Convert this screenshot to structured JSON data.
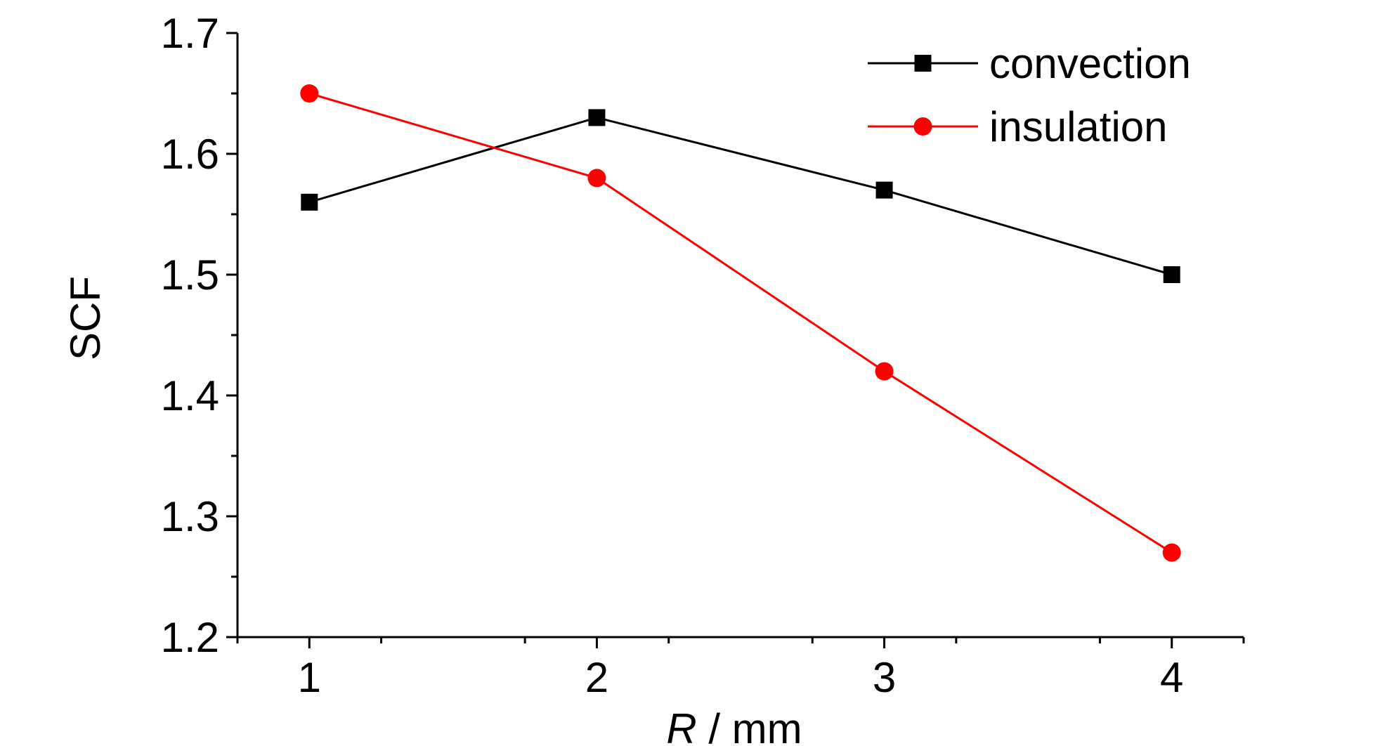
{
  "chart_data": {
    "type": "line",
    "xlabel": {
      "variable": "R",
      "unit": " / mm"
    },
    "ylabel": "SCF",
    "x": [
      1,
      2,
      3,
      4
    ],
    "x_ticks": [
      "1",
      "2",
      "3",
      "4"
    ],
    "y_ticks": [
      "1.2",
      "1.3",
      "1.4",
      "1.5",
      "1.6",
      "1.7"
    ],
    "xlim": [
      0.75,
      4.25
    ],
    "ylim": [
      1.2,
      1.7
    ],
    "grid": false,
    "legend_position": "top-right",
    "series": [
      {
        "name": "convection",
        "color": "#000000",
        "marker": "square",
        "values": [
          1.56,
          1.63,
          1.57,
          1.5
        ]
      },
      {
        "name": "insulation",
        "color": "#ff0000",
        "marker": "circle",
        "values": [
          1.65,
          1.58,
          1.42,
          1.27
        ]
      }
    ]
  }
}
